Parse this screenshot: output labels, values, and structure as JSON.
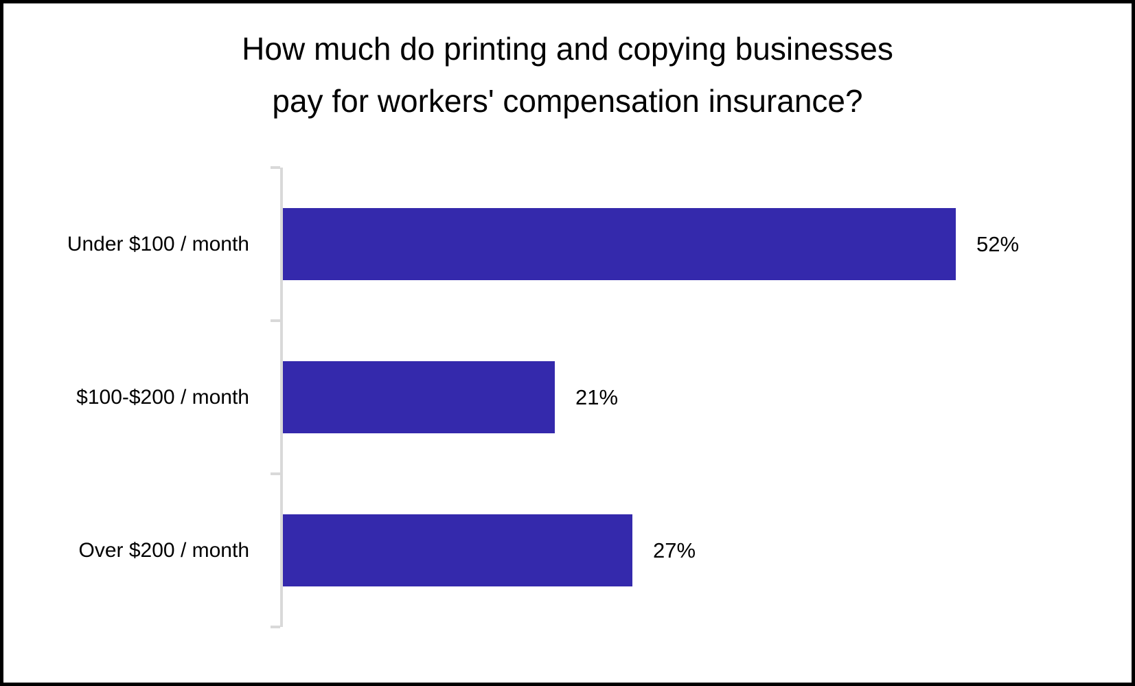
{
  "title": {
    "line1": "How much do printing and copying businesses",
    "line2": "pay for workers' compensation insurance?"
  },
  "chart_data": {
    "type": "bar",
    "orientation": "horizontal",
    "title": "How much do printing and copying businesses pay for workers' compensation insurance?",
    "categories": [
      "Under $100 / month",
      "$100-$200 / month",
      "Over $200 / month"
    ],
    "values": [
      52,
      21,
      27
    ],
    "value_labels": [
      "52%",
      "21%",
      "27%"
    ],
    "unit": "%",
    "xlim": [
      0,
      60
    ],
    "grid": false,
    "legend": false,
    "data_labels": "outside-end",
    "bar_color": "#3429AC",
    "axis_color": "#D9D9D9",
    "text_color": "#000000",
    "frame_border_color": "#000000",
    "background_color": "#FFFFFF"
  }
}
